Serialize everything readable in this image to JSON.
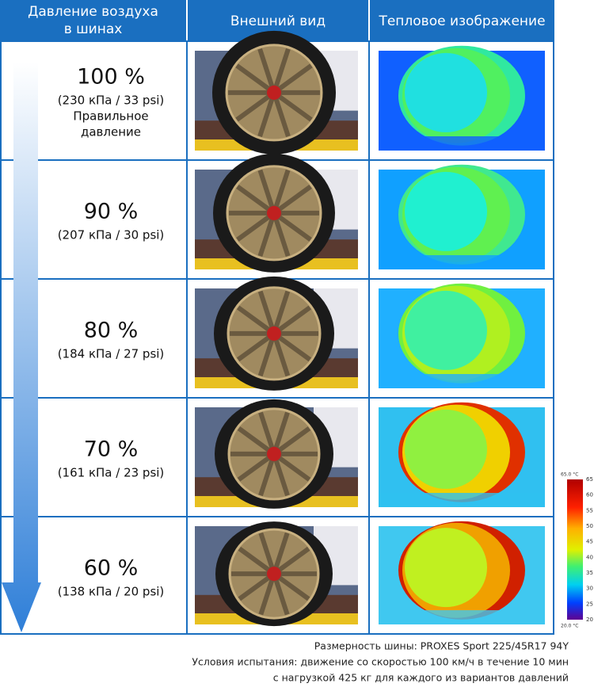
{
  "header": {
    "columns": [
      [
        "Давление воздуха",
        "в шинах"
      ],
      [
        "Внешний вид"
      ],
      [
        "Тепловое изображение"
      ]
    ]
  },
  "rows": [
    {
      "percent": "100 %",
      "detail": "(230 кПа / 33 psi)",
      "note": [
        "Правильное",
        "давление"
      ]
    },
    {
      "percent": "90 %",
      "detail": "(207 кПа / 30 psi)"
    },
    {
      "percent": "80 %",
      "detail": "(184 кПа / 27 psi)"
    },
    {
      "percent": "70 %",
      "detail": "(161 кПа / 23 psi)"
    },
    {
      "percent": "60 %",
      "detail": "(138 кПа / 20 psi)"
    }
  ],
  "scale": {
    "max_label": "65.0 °C",
    "min_label": "20.0 °C",
    "ticks": [
      "65",
      "60",
      "55",
      "50",
      "45",
      "40",
      "35",
      "30",
      "25",
      "20"
    ]
  },
  "footnote": [
    "Размерность шины: PROXES Sport 225/45R17 94Y",
    "Условия испытания: движение со скоростью 100 км/ч в течение 10 мин",
    "с нагрузкой 425 кг для каждого из вариантов давлений"
  ]
}
